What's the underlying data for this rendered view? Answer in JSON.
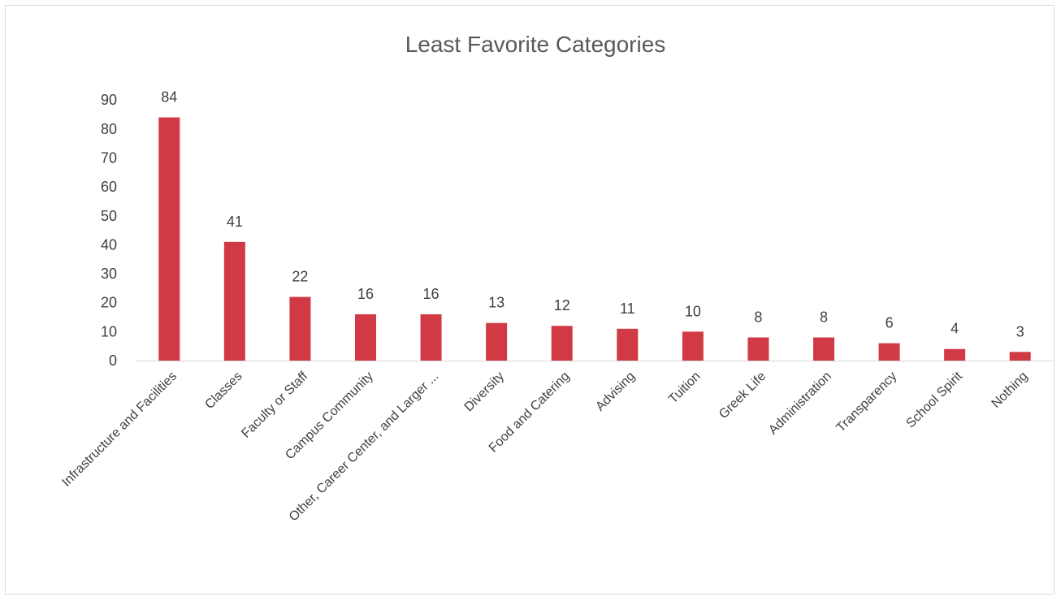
{
  "chart_data": {
    "type": "bar",
    "title": "Least Favorite Categories",
    "xlabel": "",
    "ylabel": "",
    "categories": [
      "Infrastructure and Facilities",
      "Classes",
      "Faculty or Staff",
      "Campus Community",
      "Other, Career Center, and Larger ...",
      "Diversity",
      "Food and Catering",
      "Advising",
      "Tuition",
      "Greek Life",
      "Administration",
      "Transparency",
      "School Spirit",
      "Nothing"
    ],
    "values": [
      84,
      41,
      22,
      16,
      16,
      13,
      12,
      11,
      10,
      8,
      8,
      6,
      4,
      3
    ],
    "ylim": [
      0,
      90
    ],
    "yticks": [
      0,
      10,
      20,
      30,
      40,
      50,
      60,
      70,
      80,
      90
    ],
    "grid": false,
    "legend": "none",
    "bar_color": "#d13a45",
    "data_labels": true
  }
}
